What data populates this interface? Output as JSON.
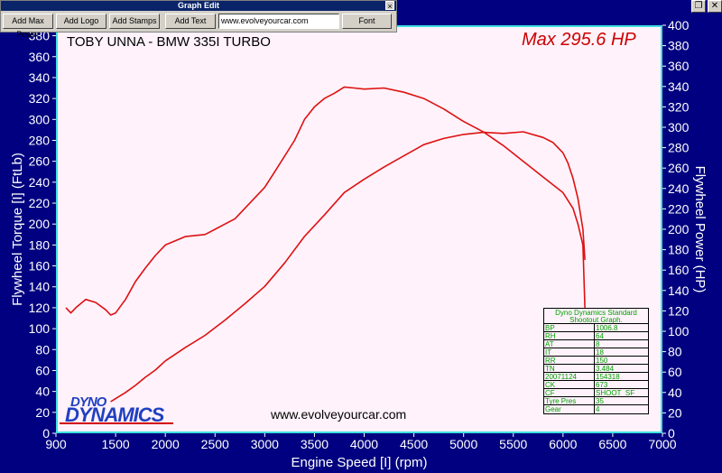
{
  "toolbar": {
    "title": "Graph Edit",
    "close_label": "×",
    "add_max_power_label": "Add Max Power",
    "add_logo_label": "Add Logo",
    "add_stamps_label": "Add Stamps",
    "add_text_label": "Add Text",
    "url_value": "www.evolveyourcar.com",
    "font_label": "Font"
  },
  "window": {
    "restore_label": "❐",
    "close_label": "✕"
  },
  "chart_title": "TOBY UNNA - BMW 335I TURBO",
  "max_power_label": "Max 295.6 HP",
  "website_label": "www.evolveyourcar.com",
  "logo": {
    "line1": "DYNO",
    "line2": "DYNAMICS"
  },
  "info_table": {
    "title": "Dyno Dynamics Standard Shootout Graph.",
    "rows": [
      {
        "k": "BP",
        "v": "1006.8"
      },
      {
        "k": "RH",
        "v": "64"
      },
      {
        "k": "AT",
        "v": "8"
      },
      {
        "k": "IT",
        "v": "18"
      },
      {
        "k": "RR",
        "v": "150"
      },
      {
        "k": "TN",
        "v": "3.484"
      },
      {
        "k": "20071124",
        "v": "154318"
      },
      {
        "k": "CK",
        "v": "673"
      },
      {
        "k": "CF",
        "v": "SHOOT_SF"
      },
      {
        "k": "Tyre Pres",
        "v": "35"
      },
      {
        "k": "Gear",
        "v": "4"
      }
    ]
  },
  "colors": {
    "background": "#000080",
    "plot_bg": "#fff2fb",
    "curve": "#dd1111",
    "frame": "#40e0e0"
  },
  "chart_data": {
    "type": "line",
    "xlabel": "Engine Speed [I] (rpm)",
    "ylabel": "Flywheel Torque [I] (FtLb)",
    "y2label": "Flywheel Power (HP)",
    "xlim": [
      900,
      7000
    ],
    "ylim": [
      0,
      390
    ],
    "y2lim": [
      0,
      400
    ],
    "x_ticks": [
      900,
      1500,
      2000,
      2500,
      3000,
      3500,
      4000,
      4500,
      5000,
      5500,
      6000,
      6500,
      7000
    ],
    "y_ticks": [
      0,
      20,
      40,
      60,
      80,
      100,
      120,
      140,
      160,
      180,
      200,
      220,
      240,
      260,
      280,
      300,
      320,
      340,
      360,
      380
    ],
    "y2_ticks": [
      0,
      20,
      40,
      60,
      80,
      100,
      120,
      140,
      160,
      180,
      200,
      220,
      240,
      260,
      280,
      300,
      320,
      340,
      360,
      380,
      400
    ],
    "grid": false,
    "series": [
      {
        "axis": "left",
        "x": [
          1000,
          1050,
          1100,
          1200,
          1300,
          1400,
          1450,
          1500,
          1600,
          1700,
          1800,
          1900,
          2000,
          2200,
          2400,
          2500,
          2600,
          2700,
          2800,
          2900,
          3000,
          3100,
          3200,
          3300,
          3400,
          3500,
          3600,
          3700,
          3800,
          3900,
          4000,
          4200,
          4400,
          4600,
          4800,
          5000,
          5200,
          5400,
          5600,
          5800,
          6000,
          6100,
          6150,
          6200,
          6220
        ],
        "y": [
          120,
          115,
          120,
          128,
          125,
          118,
          113,
          115,
          128,
          145,
          158,
          170,
          180,
          188,
          190,
          195,
          200,
          205,
          215,
          225,
          235,
          250,
          265,
          280,
          300,
          312,
          320,
          325,
          331,
          330,
          329,
          330,
          326,
          320,
          310,
          298,
          288,
          275,
          260,
          245,
          230,
          215,
          200,
          180,
          120
        ]
      },
      {
        "axis": "right",
        "x": [
          1450,
          1500,
          1600,
          1700,
          1800,
          1900,
          2000,
          2200,
          2400,
          2600,
          2800,
          3000,
          3200,
          3400,
          3600,
          3800,
          4000,
          4200,
          4400,
          4600,
          4800,
          5000,
          5200,
          5400,
          5600,
          5800,
          5900,
          6000,
          6050,
          6100,
          6150,
          6200,
          6220
        ],
        "y": [
          31,
          34,
          40,
          47,
          55,
          62,
          71,
          84,
          96,
          111,
          127,
          144,
          167,
          193,
          214,
          236,
          249,
          261,
          272,
          283,
          289,
          293,
          295,
          294,
          295.6,
          290,
          285,
          275,
          265,
          250,
          230,
          200,
          170
        ]
      }
    ]
  }
}
